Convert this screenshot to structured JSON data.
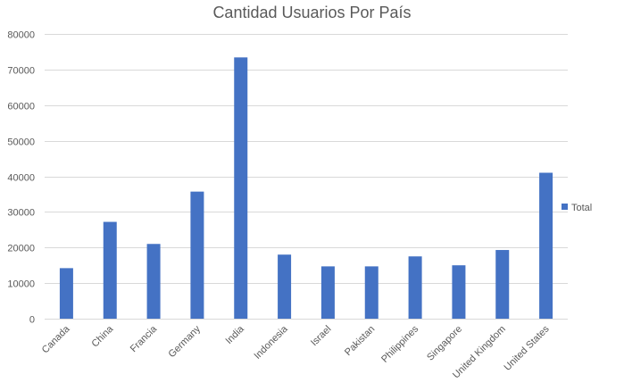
{
  "chart_data": {
    "type": "bar",
    "title": "Cantidad Usuarios Por País",
    "categories": [
      "Canada",
      "China",
      "Francia",
      "Germany",
      "India",
      "Indonesia",
      "Israel",
      "Pakistan",
      "Philippines",
      "Singapore",
      "United Kingdom",
      "United States"
    ],
    "series": [
      {
        "name": "Total",
        "values": [
          14200,
          27200,
          21000,
          35700,
          73400,
          18000,
          14700,
          14700,
          17500,
          15000,
          19300,
          41000
        ],
        "color": "#4472C4"
      }
    ],
    "ylim": [
      0,
      80000
    ],
    "yticks": [
      0,
      10000,
      20000,
      30000,
      40000,
      50000,
      60000,
      70000,
      80000
    ],
    "xlabel": "",
    "ylabel": "",
    "grid": true,
    "legend_position": "right"
  }
}
